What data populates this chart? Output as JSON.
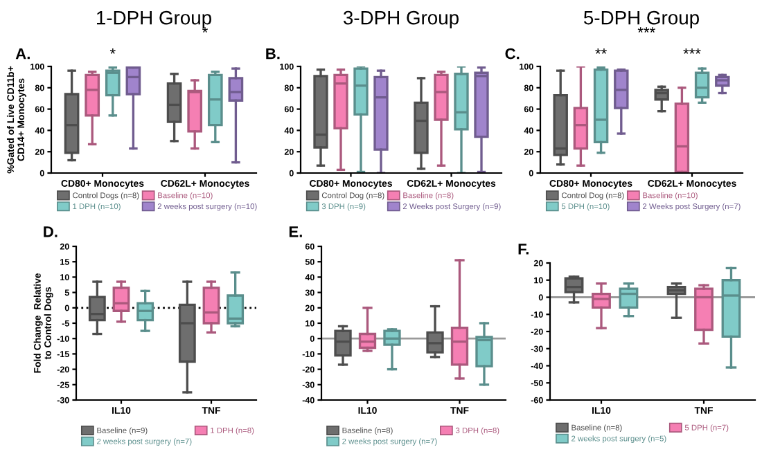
{
  "chart_data": [
    {
      "type": "box",
      "title": "1-DPH Group",
      "ylabel": "%Gated of Live CD11b+ CD14+ Monocytes",
      "annotations": [
        "A.",
        "*",
        "*"
      ],
      "categories": [
        "CD80+ Monocytes",
        "CD62L+ Monocytes"
      ],
      "ylim": [
        0,
        100
      ],
      "yticks": [
        0,
        20,
        40,
        60,
        80,
        100
      ],
      "legend": "bottom",
      "grid": false,
      "series": [
        {
          "name": "Control Dogs (n=8)",
          "color": "#6e6e6e",
          "boxes": [
            {
              "low": 12,
              "q1": 19,
              "median": 45,
              "q3": 74,
              "high": 96
            },
            {
              "low": 30,
              "q1": 48,
              "median": 64,
              "q3": 84,
              "high": 93
            }
          ]
        },
        {
          "name": "Baseline (n=10)",
          "color": "#f57fb3",
          "boxes": [
            {
              "low": 27,
              "q1": 54,
              "median": 78,
              "q3": 92,
              "high": 95
            },
            {
              "low": 23,
              "q1": 39,
              "median": 76,
              "q3": 77,
              "high": 87
            }
          ]
        },
        {
          "name": "1 DPH (n=10)",
          "color": "#80cbc8",
          "boxes": [
            {
              "low": 54,
              "q1": 73,
              "median": 94,
              "q3": 96,
              "high": 99
            },
            {
              "low": 29,
              "q1": 45,
              "median": 69,
              "q3": 92,
              "high": 95
            }
          ]
        },
        {
          "name": "2 weeks post surgery (n=10)",
          "color": "#a084cc",
          "boxes": [
            {
              "low": 23,
              "q1": 74,
              "median": 90,
              "q3": 99,
              "high": 99
            },
            {
              "low": 10,
              "q1": 68,
              "median": 76,
              "q3": 89,
              "high": 98
            }
          ]
        }
      ]
    },
    {
      "type": "box",
      "title": "3-DPH Group",
      "annotations": [
        "B."
      ],
      "categories": [
        "CD80+ Monocytes",
        "CD62L+ Monocytes"
      ],
      "ylim": [
        0,
        100
      ],
      "yticks": [
        0,
        20,
        40,
        60,
        80,
        100
      ],
      "legend": "bottom",
      "grid": false,
      "series": [
        {
          "name": "Control Dog (n=8)",
          "color": "#6e6e6e",
          "boxes": [
            {
              "low": 7,
              "q1": 24,
              "median": 36,
              "q3": 91,
              "high": 97
            },
            {
              "low": 4,
              "q1": 19,
              "median": 49,
              "q3": 66,
              "high": 89
            }
          ]
        },
        {
          "name": "Baseline (n=8)",
          "color": "#f57fb3",
          "boxes": [
            {
              "low": 3,
              "q1": 42,
              "median": 84,
              "q3": 92,
              "high": 97
            },
            {
              "low": 7,
              "q1": 50,
              "median": 76,
              "q3": 92,
              "high": 95
            }
          ]
        },
        {
          "name": "3 DPH (n=9)",
          "color": "#80cbc8",
          "boxes": [
            {
              "low": 1,
              "q1": 55,
              "median": 82,
              "q3": 98,
              "high": 100
            },
            {
              "low": 0,
              "q1": 41,
              "median": 57,
              "q3": 93,
              "high": 100
            }
          ]
        },
        {
          "name": "2 Weeks post Surgery (n=9)",
          "color": "#a084cc",
          "boxes": [
            {
              "low": 0,
              "q1": 22,
              "median": 71,
              "q3": 90,
              "high": 96
            },
            {
              "low": 1,
              "q1": 34,
              "median": 91,
              "q3": 94,
              "high": 99
            }
          ]
        }
      ]
    },
    {
      "type": "box",
      "title": "5-DPH Group",
      "annotations": [
        "C.",
        "**",
        "***",
        "***"
      ],
      "categories": [
        "CD80+ Monocytes",
        "CD62L+ Monocytes"
      ],
      "ylim": [
        0,
        100
      ],
      "yticks": [
        0,
        20,
        40,
        60,
        80,
        100
      ],
      "legend": "bottom",
      "grid": false,
      "series": [
        {
          "name": "Control Dog (n=8)",
          "color": "#6e6e6e",
          "boxes": [
            {
              "low": 8,
              "q1": 17,
              "median": 23,
              "q3": 73,
              "high": 96
            },
            {
              "low": 58,
              "q1": 69,
              "median": 75,
              "q3": 78,
              "high": 81
            }
          ]
        },
        {
          "name": "Baseline (n=10)",
          "color": "#f57fb3",
          "boxes": [
            {
              "low": 7,
              "q1": 23,
              "median": 45,
              "q3": 61,
              "high": 100
            },
            {
              "low": 0,
              "q1": 1,
              "median": 25,
              "q3": 65,
              "high": 80
            }
          ]
        },
        {
          "name": "5 DPH (n=10)",
          "color": "#80cbc8",
          "boxes": [
            {
              "low": 19,
              "q1": 29,
              "median": 50,
              "q3": 97,
              "high": 99
            },
            {
              "low": 66,
              "q1": 71,
              "median": 80,
              "q3": 94,
              "high": 98
            }
          ]
        },
        {
          "name": "2 Weeks post Surgery (n=7)",
          "color": "#a084cc",
          "boxes": [
            {
              "low": 37,
              "q1": 61,
              "median": 78,
              "q3": 96,
              "high": 97
            },
            {
              "low": 75,
              "q1": 82,
              "median": 87,
              "q3": 90,
              "high": 92
            }
          ]
        }
      ]
    },
    {
      "type": "box",
      "ylabel": "Fold Change  Relative to Control Dogs",
      "annotations": [
        "D."
      ],
      "categories": [
        "IL10",
        "TNF"
      ],
      "ylim": [
        -30,
        20
      ],
      "yticks": [
        -30,
        -25,
        -20,
        -15,
        -10,
        -5,
        0,
        5,
        10,
        15,
        20
      ],
      "legend": "bottom",
      "grid": false,
      "ref_lines": [
        {
          "axis": "y",
          "value": 0,
          "color": "#000000",
          "line_style": "dotted"
        }
      ],
      "series": [
        {
          "name": "Baseline (n=9)",
          "color": "#6e6e6e",
          "boxes": [
            {
              "low": -8.5,
              "q1": -4,
              "median": -2,
              "q3": 3.5,
              "high": 8.5
            },
            {
              "low": -27.5,
              "q1": -17.5,
              "median": -5,
              "q3": 1,
              "high": 8.5
            }
          ]
        },
        {
          "name": "1 DPH (n=8)",
          "color": "#f57fb3",
          "boxes": [
            {
              "low": -4.5,
              "q1": -1,
              "median": 1.5,
              "q3": 6.5,
              "high": 8.5
            },
            {
              "low": -8,
              "q1": -5,
              "median": -1.5,
              "q3": 6.5,
              "high": 8.5
            }
          ]
        },
        {
          "name": "2 weeks post surgery (n=7)",
          "color": "#80cbc8",
          "boxes": [
            {
              "low": -7.5,
              "q1": -4,
              "median": -1,
              "q3": 1.5,
              "high": 5.5
            },
            {
              "low": -6,
              "q1": -5,
              "median": -3.5,
              "q3": 4,
              "high": 11.5
            }
          ]
        }
      ]
    },
    {
      "type": "box",
      "annotations": [
        "E."
      ],
      "categories": [
        "IL10",
        "TNF"
      ],
      "ylim": [
        -40,
        60
      ],
      "yticks": [
        -40,
        -30,
        -20,
        -10,
        0,
        10,
        20,
        30,
        40,
        50,
        60
      ],
      "legend": "bottom",
      "grid": false,
      "ref_lines": [
        {
          "axis": "y",
          "value": 0,
          "color": "#9a9a9a",
          "line_style": "solid"
        }
      ],
      "series": [
        {
          "name": "Baseline (n=8)",
          "color": "#6e6e6e",
          "boxes": [
            {
              "low": -17,
              "q1": -11,
              "median": -2,
              "q3": 5,
              "high": 8
            },
            {
              "low": -12,
              "q1": -9,
              "median": -3,
              "q3": 4,
              "high": 21
            }
          ]
        },
        {
          "name": "3 DPH (n=8)",
          "color": "#f57fb3",
          "boxes": [
            {
              "low": -8,
              "q1": -6,
              "median": -2,
              "q3": 3,
              "high": 20
            },
            {
              "low": -26,
              "q1": -17,
              "median": -2,
              "q3": 7,
              "high": 51
            }
          ]
        },
        {
          "name": "2 weeks post surgery (n=7)",
          "color": "#80cbc8",
          "boxes": [
            {
              "low": -20,
              "q1": -4,
              "median": 0,
              "q3": 5,
              "high": 6
            },
            {
              "low": -30,
              "q1": -18,
              "median": -1,
              "q3": 1,
              "high": 10
            }
          ]
        }
      ]
    },
    {
      "type": "box",
      "annotations": [
        "F."
      ],
      "categories": [
        "IL10",
        "TNF"
      ],
      "ylim": [
        -60,
        20
      ],
      "yticks": [
        -60,
        -50,
        -40,
        -30,
        -20,
        -10,
        0,
        10,
        20
      ],
      "legend": "bottom",
      "grid": false,
      "ref_lines": [
        {
          "axis": "y",
          "value": 0,
          "color": "#9a9a9a",
          "line_style": "solid"
        }
      ],
      "series": [
        {
          "name": "Baseline (n=8)",
          "color": "#6e6e6e",
          "boxes": [
            {
              "low": -3,
              "q1": 3,
              "median": 6,
              "q3": 11,
              "high": 12
            },
            {
              "low": -12,
              "q1": 2,
              "median": 4,
              "q3": 6,
              "high": 8
            }
          ]
        },
        {
          "name": "5 DPH (n=7)",
          "color": "#f57fb3",
          "boxes": [
            {
              "low": -18,
              "q1": -6,
              "median": -1,
              "q3": 2,
              "high": 8
            },
            {
              "low": -27,
              "q1": -19,
              "median": 0,
              "q3": 5,
              "high": 7
            }
          ]
        },
        {
          "name": "2 weeks post surgery (n=5)",
          "color": "#80cbc8",
          "boxes": [
            {
              "low": -11,
              "q1": -6,
              "median": 2,
              "q3": 5,
              "high": 8
            },
            {
              "low": -41,
              "q1": -23,
              "median": 1,
              "q3": 10,
              "high": 17
            }
          ]
        }
      ]
    }
  ]
}
